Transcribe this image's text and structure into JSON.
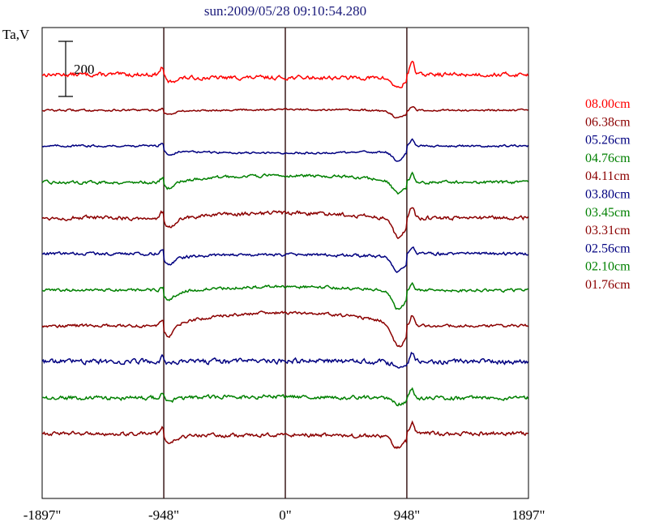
{
  "chart_data": {
    "type": "line",
    "title": "sun:2009/05/28 09:10:54.280",
    "ylabel": "Ta,V",
    "scale_bar_label": "200",
    "scale_bar_value": 200,
    "x_tick_labels": [
      "-1897\"",
      "-948\"",
      "0\"",
      "948\"",
      "1897\""
    ],
    "x_ticks": [
      -1897,
      -948,
      0,
      948,
      1897
    ],
    "xlim": [
      -1897,
      1897
    ],
    "vertical_lines": [
      -948,
      0,
      948
    ],
    "legend_placement": "right",
    "series": [
      {
        "name": "08.00cm",
        "color": "#ff0000",
        "offset": 0,
        "disk": 1,
        "limbdip": 12,
        "spike": 18,
        "noise": 2.0
      },
      {
        "name": "06.38cm",
        "color": "#8b0000",
        "offset": 44,
        "disk": 4,
        "limbdip": 8,
        "spike": 4,
        "noise": 1.0
      },
      {
        "name": "05.26cm",
        "color": "#000080",
        "offset": 88,
        "disk": -4,
        "limbdip": 12,
        "spike": 8,
        "noise": 1.0
      },
      {
        "name": "04.76cm",
        "color": "#008000",
        "offset": 133,
        "disk": 14,
        "limbdip": 14,
        "spike": 10,
        "noise": 1.5
      },
      {
        "name": "04.11cm",
        "color": "#8b0000",
        "offset": 177,
        "disk": 14,
        "limbdip": 20,
        "spike": 14,
        "noise": 2.0
      },
      {
        "name": "03.80cm",
        "color": "#000080",
        "offset": 221,
        "disk": 6,
        "limbdip": 18,
        "spike": 8,
        "noise": 1.5
      },
      {
        "name": "03.45cm",
        "color": "#008000",
        "offset": 266,
        "disk": 12,
        "limbdip": 20,
        "spike": 8,
        "noise": 1.5
      },
      {
        "name": "03.31cm",
        "color": "#8b0000",
        "offset": 310,
        "disk": 26,
        "limbdip": 25,
        "spike": 14,
        "noise": 1.5
      },
      {
        "name": "02.56cm",
        "color": "#000080",
        "offset": 354,
        "disk": 3,
        "limbdip": 6,
        "spike": 10,
        "noise": 2.5
      },
      {
        "name": "02.10cm",
        "color": "#008000",
        "offset": 399,
        "disk": 4,
        "limbdip": 6,
        "spike": 12,
        "noise": 2.0
      },
      {
        "name": "01.76cm",
        "color": "#8b0000",
        "offset": 443,
        "disk": 4,
        "limbdip": 14,
        "spike": 14,
        "noise": 2.0
      }
    ]
  }
}
